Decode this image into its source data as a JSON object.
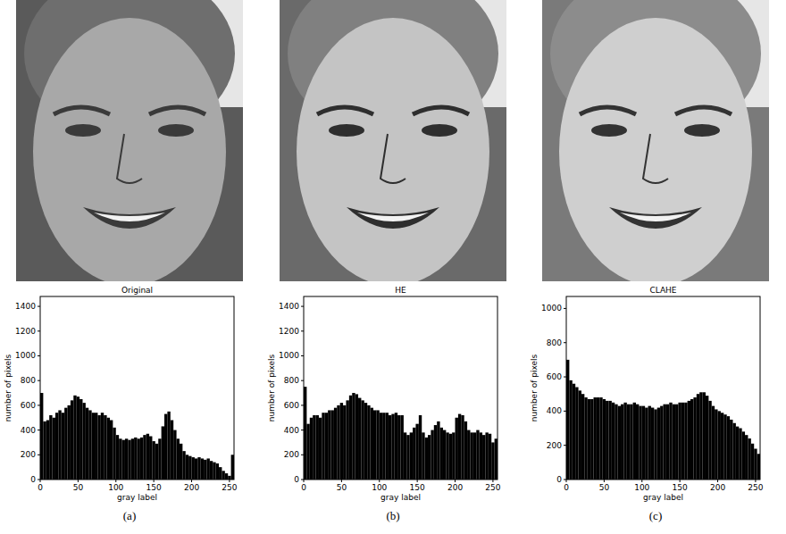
{
  "chart_data": [
    {
      "type": "histogram",
      "title": "Original",
      "x_label": "gray label",
      "y_label": "number of pixels",
      "color": "#000000",
      "bins": [
        0,
        4,
        8,
        12,
        16,
        20,
        24,
        28,
        32,
        36,
        40,
        44,
        48,
        52,
        56,
        60,
        64,
        68,
        72,
        76,
        80,
        84,
        88,
        92,
        96,
        100,
        104,
        108,
        112,
        116,
        120,
        124,
        128,
        132,
        136,
        140,
        144,
        148,
        152,
        156,
        160,
        164,
        168,
        172,
        176,
        180,
        184,
        188,
        192,
        196,
        200,
        204,
        208,
        212,
        216,
        220,
        224,
        228,
        232,
        236,
        240,
        244,
        248,
        252,
        256
      ],
      "values": [
        700,
        470,
        480,
        520,
        500,
        540,
        560,
        540,
        580,
        600,
        640,
        680,
        670,
        650,
        620,
        580,
        560,
        540,
        540,
        520,
        540,
        520,
        500,
        480,
        420,
        360,
        330,
        320,
        330,
        320,
        330,
        340,
        330,
        340,
        360,
        370,
        350,
        310,
        290,
        330,
        430,
        530,
        550,
        480,
        400,
        330,
        290,
        230,
        200,
        190,
        180,
        170,
        180,
        170,
        160,
        170,
        150,
        140,
        130,
        100,
        70,
        50,
        30,
        200
      ],
      "xlim": [
        0,
        256
      ],
      "ylim": [
        0,
        1480
      ],
      "xticks": [
        0,
        50,
        100,
        150,
        200,
        250
      ],
      "yticks": [
        0,
        200,
        400,
        600,
        800,
        1000,
        1200,
        1400
      ]
    },
    {
      "type": "histogram",
      "title": "HE",
      "x_label": "gray label",
      "y_label": "number of pixels",
      "color": "#000000",
      "bins": [
        0,
        4,
        8,
        12,
        16,
        20,
        24,
        28,
        32,
        36,
        40,
        44,
        48,
        52,
        56,
        60,
        64,
        68,
        72,
        76,
        80,
        84,
        88,
        92,
        96,
        100,
        104,
        108,
        112,
        116,
        120,
        124,
        128,
        132,
        136,
        140,
        144,
        148,
        152,
        156,
        160,
        164,
        168,
        172,
        176,
        180,
        184,
        188,
        192,
        196,
        200,
        204,
        208,
        212,
        216,
        220,
        224,
        228,
        232,
        236,
        240,
        244,
        248,
        252,
        256
      ],
      "values": [
        750,
        450,
        500,
        520,
        520,
        500,
        540,
        540,
        560,
        560,
        580,
        600,
        620,
        600,
        640,
        680,
        700,
        690,
        660,
        640,
        620,
        600,
        580,
        560,
        560,
        540,
        540,
        540,
        520,
        530,
        540,
        520,
        520,
        380,
        360,
        380,
        420,
        450,
        520,
        380,
        340,
        360,
        400,
        440,
        470,
        420,
        400,
        380,
        370,
        380,
        500,
        530,
        520,
        470,
        400,
        380,
        380,
        400,
        380,
        360,
        380,
        370,
        300,
        330
      ],
      "xlim": [
        0,
        256
      ],
      "ylim": [
        0,
        1480
      ],
      "xticks": [
        0,
        50,
        100,
        150,
        200,
        250
      ],
      "yticks": [
        0,
        200,
        400,
        600,
        800,
        1000,
        1200,
        1400
      ]
    },
    {
      "type": "histogram",
      "title": "CLAHE",
      "x_label": "gray label",
      "y_label": "number of pixels",
      "color": "#000000",
      "bins": [
        0,
        4,
        8,
        12,
        16,
        20,
        24,
        28,
        32,
        36,
        40,
        44,
        48,
        52,
        56,
        60,
        64,
        68,
        72,
        76,
        80,
        84,
        88,
        92,
        96,
        100,
        104,
        108,
        112,
        116,
        120,
        124,
        128,
        132,
        136,
        140,
        144,
        148,
        152,
        156,
        160,
        164,
        168,
        172,
        176,
        180,
        184,
        188,
        192,
        196,
        200,
        204,
        208,
        212,
        216,
        220,
        224,
        228,
        232,
        236,
        240,
        244,
        248,
        252,
        256
      ],
      "values": [
        700,
        580,
        560,
        540,
        520,
        500,
        480,
        470,
        470,
        480,
        480,
        480,
        470,
        460,
        460,
        450,
        440,
        430,
        440,
        450,
        440,
        440,
        450,
        440,
        430,
        430,
        420,
        430,
        420,
        410,
        420,
        430,
        440,
        440,
        450,
        440,
        440,
        450,
        450,
        450,
        460,
        470,
        480,
        500,
        510,
        510,
        490,
        460,
        430,
        410,
        400,
        390,
        380,
        370,
        350,
        330,
        310,
        300,
        280,
        260,
        240,
        210,
        180,
        150
      ],
      "xlim": [
        0,
        256
      ],
      "ylim": [
        0,
        1070
      ],
      "xticks": [
        0,
        50,
        100,
        150,
        200,
        250
      ],
      "yticks": [
        0,
        200,
        400,
        600,
        800,
        1000
      ]
    }
  ],
  "captions": [
    "(a)",
    "(b)",
    "(c)"
  ]
}
